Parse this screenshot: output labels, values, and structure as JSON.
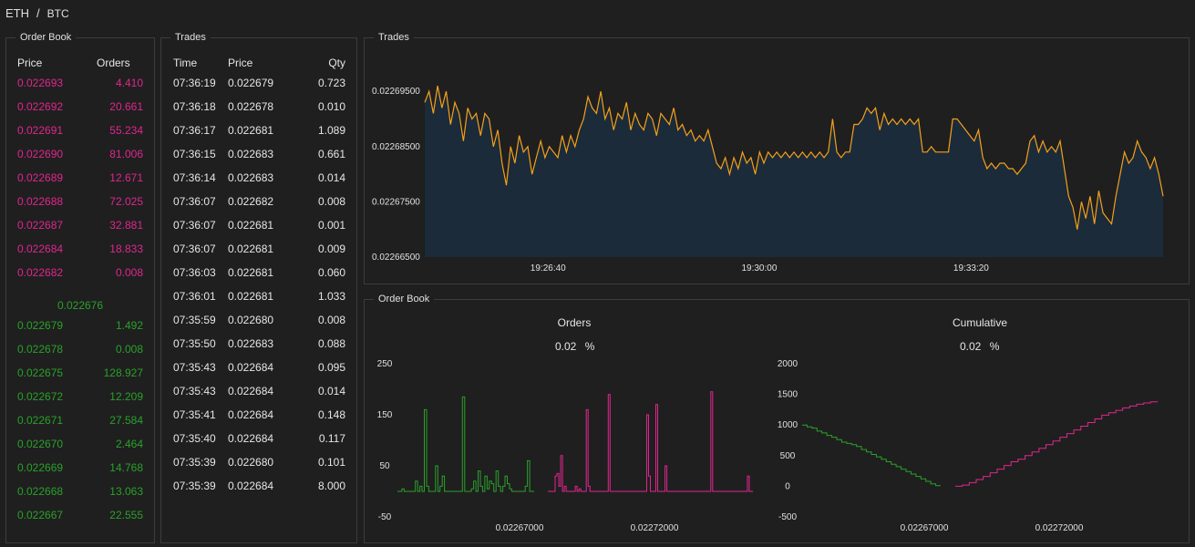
{
  "pair": {
    "base": "ETH",
    "sep": "/",
    "quote": "BTC"
  },
  "orderbook_table": {
    "title": "Order Book",
    "headers": {
      "price": "Price",
      "orders": "Orders"
    },
    "asks": [
      {
        "price": "0.022693",
        "orders": "4.410"
      },
      {
        "price": "0.022692",
        "orders": "20.661"
      },
      {
        "price": "0.022691",
        "orders": "55.234"
      },
      {
        "price": "0.022690",
        "orders": "81.006"
      },
      {
        "price": "0.022689",
        "orders": "12.671"
      },
      {
        "price": "0.022688",
        "orders": "72.025"
      },
      {
        "price": "0.022687",
        "orders": "32.881"
      },
      {
        "price": "0.022684",
        "orders": "18.833"
      },
      {
        "price": "0.022682",
        "orders": "0.008"
      }
    ],
    "mid_price": "0.022676",
    "bids": [
      {
        "price": "0.022679",
        "orders": "1.492"
      },
      {
        "price": "0.022678",
        "orders": "0.008"
      },
      {
        "price": "0.022675",
        "orders": "128.927"
      },
      {
        "price": "0.022672",
        "orders": "12.209"
      },
      {
        "price": "0.022671",
        "orders": "27.584"
      },
      {
        "price": "0.022670",
        "orders": "2.464"
      },
      {
        "price": "0.022669",
        "orders": "14.768"
      },
      {
        "price": "0.022668",
        "orders": "13.063"
      },
      {
        "price": "0.022667",
        "orders": "22.555"
      }
    ]
  },
  "trades_table": {
    "title": "Trades",
    "headers": {
      "time": "Time",
      "price": "Price",
      "qty": "Qty"
    },
    "rows": [
      {
        "time": "07:36:19",
        "price": "0.022679",
        "qty": "0.723"
      },
      {
        "time": "07:36:18",
        "price": "0.022678",
        "qty": "0.010"
      },
      {
        "time": "07:36:17",
        "price": "0.022681",
        "qty": "1.089"
      },
      {
        "time": "07:36:15",
        "price": "0.022683",
        "qty": "0.661"
      },
      {
        "time": "07:36:14",
        "price": "0.022683",
        "qty": "0.014"
      },
      {
        "time": "07:36:07",
        "price": "0.022682",
        "qty": "0.008"
      },
      {
        "time": "07:36:07",
        "price": "0.022681",
        "qty": "0.001"
      },
      {
        "time": "07:36:07",
        "price": "0.022681",
        "qty": "0.009"
      },
      {
        "time": "07:36:03",
        "price": "0.022681",
        "qty": "0.060"
      },
      {
        "time": "07:36:01",
        "price": "0.022681",
        "qty": "1.033"
      },
      {
        "time": "07:35:59",
        "price": "0.022680",
        "qty": "0.008"
      },
      {
        "time": "07:35:50",
        "price": "0.022683",
        "qty": "0.088"
      },
      {
        "time": "07:35:43",
        "price": "0.022684",
        "qty": "0.095"
      },
      {
        "time": "07:35:43",
        "price": "0.022684",
        "qty": "0.014"
      },
      {
        "time": "07:35:41",
        "price": "0.022684",
        "qty": "0.148"
      },
      {
        "time": "07:35:40",
        "price": "0.022684",
        "qty": "0.117"
      },
      {
        "time": "07:35:39",
        "price": "0.022680",
        "qty": "0.101"
      },
      {
        "time": "07:35:39",
        "price": "0.022684",
        "qty": "8.000"
      }
    ]
  },
  "trades_chart_panel": {
    "title": "Trades"
  },
  "orderbook_chart_panel": {
    "title": "Order Book",
    "orders_title": "Orders",
    "orders_pct_value": "0.02",
    "orders_pct_unit": "%",
    "cumulative_title": "Cumulative",
    "cumulative_pct_value": "0.02",
    "cumulative_pct_unit": "%"
  },
  "colors": {
    "bid": "#2aa12a",
    "ask": "#e0268f",
    "line": "#f5a01a",
    "area": "#1b2b3a"
  },
  "chart_data": [
    {
      "type": "area",
      "title": "",
      "xlabel": "",
      "ylabel": "",
      "x_ticks": [
        "19:26:40",
        "19:30:00",
        "19:33:20"
      ],
      "y_ticks": [
        "0.02269500",
        "0.02268500",
        "0.02267500",
        "0.02266500"
      ],
      "y_tick_values": [
        0.022695,
        0.022685,
        0.022675,
        0.022665
      ],
      "ylim": [
        0.022665,
        0.022698
      ],
      "series": [
        {
          "values": [
            0.022693,
            0.022695,
            0.022691,
            0.022696,
            0.022692,
            0.022695,
            0.022689,
            0.022693,
            0.022691,
            0.022686,
            0.022692,
            0.02269,
            0.022691,
            0.022687,
            0.022691,
            0.02269,
            0.022685,
            0.022688,
            0.022682,
            0.022678,
            0.022685,
            0.022682,
            0.022687,
            0.022684,
            0.022685,
            0.02268,
            0.022683,
            0.022686,
            0.022683,
            0.022685,
            0.022684,
            0.022683,
            0.022687,
            0.022684,
            0.022687,
            0.022685,
            0.022688,
            0.02269,
            0.022694,
            0.022692,
            0.022691,
            0.022695,
            0.02269,
            0.022692,
            0.022688,
            0.022691,
            0.02269,
            0.022693,
            0.022688,
            0.022691,
            0.022689,
            0.022688,
            0.022691,
            0.02269,
            0.022687,
            0.022691,
            0.02269,
            0.022689,
            0.022692,
            0.022688,
            0.022689,
            0.022687,
            0.022688,
            0.022686,
            0.022687,
            0.022686,
            0.022688,
            0.022685,
            0.022682,
            0.022681,
            0.022683,
            0.02268,
            0.022683,
            0.022681,
            0.022684,
            0.022682,
            0.022683,
            0.02268,
            0.022684,
            0.022682,
            0.022684,
            0.022683,
            0.022684,
            0.022683,
            0.022684,
            0.022683,
            0.022684,
            0.022683,
            0.022684,
            0.022683,
            0.022684,
            0.022683,
            0.022684,
            0.022683,
            0.022684,
            0.02269,
            0.022684,
            0.022683,
            0.022684,
            0.022684,
            0.022689,
            0.022689,
            0.02269,
            0.022692,
            0.022691,
            0.022692,
            0.022688,
            0.022691,
            0.022689,
            0.02269,
            0.022689,
            0.02269,
            0.022689,
            0.02269,
            0.022689,
            0.02269,
            0.022684,
            0.022684,
            0.022685,
            0.022684,
            0.022684,
            0.022684,
            0.022684,
            0.02269,
            0.02269,
            0.022689,
            0.022688,
            0.022687,
            0.022686,
            0.022688,
            0.022683,
            0.022681,
            0.022682,
            0.022681,
            0.022682,
            0.022682,
            0.022681,
            0.022681,
            0.02268,
            0.022681,
            0.022682,
            0.022686,
            0.022687,
            0.022684,
            0.022686,
            0.022684,
            0.022685,
            0.022684,
            0.022686,
            0.022681,
            0.022676,
            0.022674,
            0.02267,
            0.022675,
            0.022672,
            0.022676,
            0.022671,
            0.022677,
            0.022673,
            0.022672,
            0.022671,
            0.022676,
            0.02268,
            0.022684,
            0.022682,
            0.022683,
            0.022686,
            0.022684,
            0.022683,
            0.022681,
            0.022683,
            0.02268,
            0.022676
          ]
        }
      ]
    },
    {
      "type": "line",
      "title": "Orders",
      "xlabel": "",
      "ylabel": "",
      "x_ticks": [
        "0.02267000",
        "0.02272000"
      ],
      "y_ticks": [
        "250",
        "150",
        "50",
        "-50"
      ],
      "ylim": [
        -50,
        250
      ],
      "series": [
        {
          "values": [
            0,
            0,
            5,
            0,
            0,
            0,
            0,
            0,
            20,
            0,
            10,
            0,
            160,
            10,
            0,
            0,
            0,
            50,
            0,
            10,
            30,
            0,
            0,
            0,
            0,
            0,
            0,
            0,
            0,
            185,
            0,
            0,
            0,
            5,
            20,
            0,
            40,
            10,
            0,
            30,
            5,
            20,
            15,
            0,
            40,
            10,
            0,
            10,
            30,
            15,
            5,
            0,
            0,
            0,
            0,
            0,
            0,
            10,
            60,
            0,
            0
          ]
        },
        {
          "values": [
            0,
            0,
            0,
            0,
            30,
            35,
            10,
            70,
            0,
            10,
            0,
            0,
            0,
            0,
            0,
            10,
            0,
            5,
            0,
            0,
            0,
            160,
            10,
            0,
            0,
            0,
            0,
            0,
            0,
            0,
            0,
            0,
            0,
            190,
            0,
            0,
            0,
            0,
            0,
            0,
            0,
            0,
            0,
            0,
            0,
            0,
            0,
            0,
            0,
            0,
            0,
            0,
            0,
            0,
            150,
            30,
            0,
            0,
            0,
            170,
            0,
            0,
            0,
            0,
            50,
            0,
            0,
            0,
            0,
            0,
            0,
            0,
            0,
            0,
            0,
            0,
            0,
            0,
            0,
            0,
            0,
            0,
            0,
            0,
            0,
            0,
            0,
            0,
            0,
            195,
            0,
            0,
            0,
            0,
            0,
            0,
            0,
            0,
            0,
            0,
            0,
            0,
            0,
            0,
            0,
            0,
            0,
            0,
            0,
            30,
            0,
            0
          ]
        }
      ]
    },
    {
      "type": "line",
      "title": "Cumulative",
      "xlabel": "",
      "ylabel": "",
      "x_ticks": [
        "0.02267000",
        "0.02272000"
      ],
      "y_ticks": [
        "2000",
        "1500",
        "1000",
        "500",
        "0",
        "-500"
      ],
      "ylim": [
        -500,
        2000
      ],
      "series": [
        {
          "values": [
            1000,
            970,
            950,
            900,
            870,
            830,
            800,
            760,
            720,
            700,
            680,
            650,
            600,
            560,
            520,
            480,
            440,
            400,
            360,
            320,
            280,
            240,
            200,
            160,
            120,
            80,
            40,
            10
          ]
        },
        {
          "values": [
            0,
            20,
            60,
            110,
            160,
            220,
            280,
            340,
            400,
            440,
            500,
            560,
            620,
            680,
            740,
            800,
            860,
            920,
            980,
            1040,
            1100,
            1160,
            1200,
            1240,
            1280,
            1310,
            1340,
            1360,
            1380
          ]
        }
      ]
    }
  ]
}
